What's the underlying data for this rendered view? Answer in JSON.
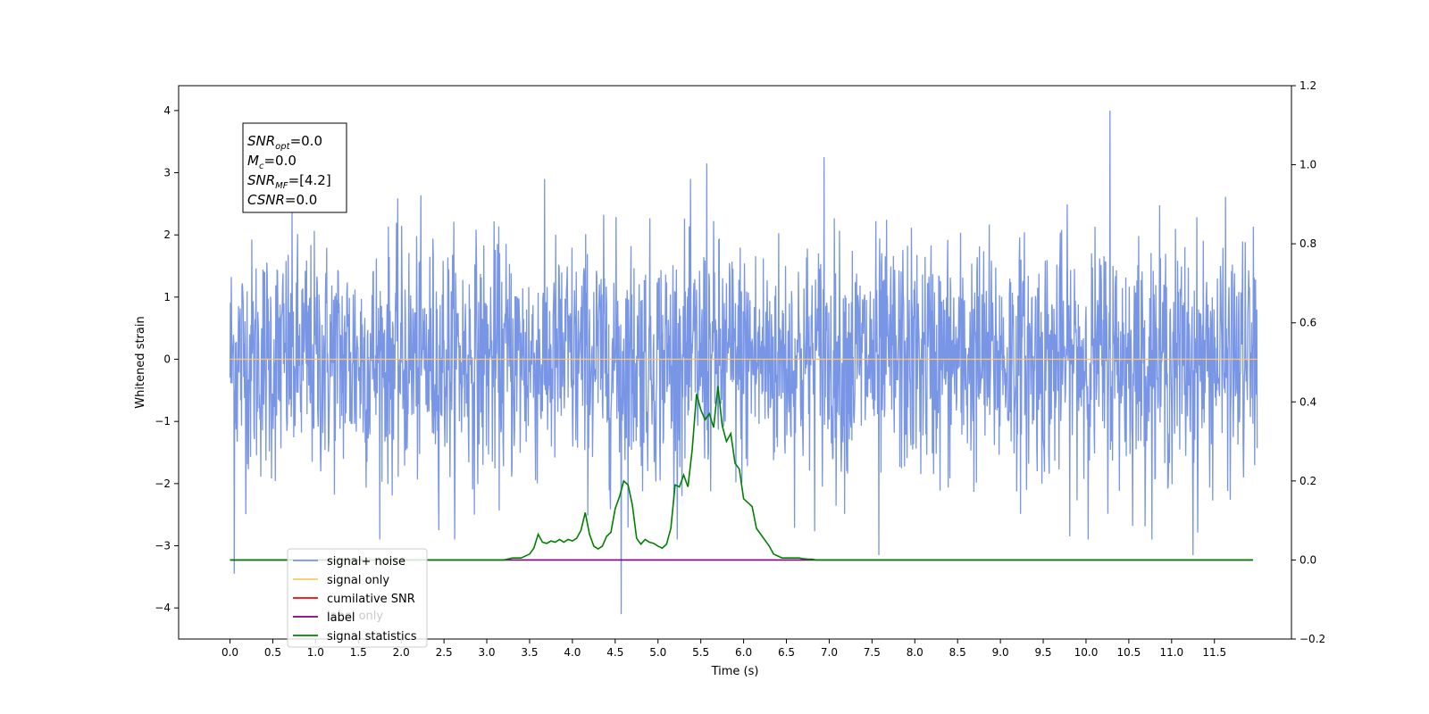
{
  "chart_data": {
    "type": "line",
    "xlabel": "Time (s)",
    "ylabel_left": "Whitened strain",
    "xlim": [
      -0.6,
      12.4
    ],
    "ylim_left": [
      -4.5,
      4.4
    ],
    "ylim_right": [
      -0.2,
      1.2
    ],
    "x_ticks": [
      "0.0",
      "0.5",
      "1.0",
      "1.5",
      "2.0",
      "2.5",
      "3.0",
      "3.5",
      "4.0",
      "4.5",
      "5.0",
      "5.5",
      "6.0",
      "6.5",
      "7.0",
      "7.5",
      "8.0",
      "8.5",
      "9.0",
      "9.5",
      "10.0",
      "10.5",
      "11.0",
      "11.5"
    ],
    "y_left_ticks": [
      "4",
      "3",
      "2",
      "1",
      "0",
      "−1",
      "−2",
      "−3",
      "−4"
    ],
    "y_right_ticks": [
      "1.2",
      "1.0",
      "0.8",
      "0.6",
      "0.4",
      "0.2",
      "0.0",
      "−0.2"
    ],
    "colors": {
      "signal_noise": "#7895e6",
      "signal_only": "#ffc864",
      "cumulative_snr": "#ff0000",
      "label": "#800080",
      "signal_statistics": "#008000"
    },
    "legend": {
      "placement": "lower-left",
      "entries": [
        "signal+ noise",
        "signal only",
        "cumilative SNR",
        "label",
        "signal statistics"
      ],
      "ghost_text": [
        "label only"
      ]
    },
    "annotation": {
      "lines": [
        {
          "base": "SNR",
          "sub": "opt",
          "rest": "=0.0"
        },
        {
          "base": "M",
          "sub": "c",
          "rest": "=0.0"
        },
        {
          "base": "SNR",
          "sub": "MF",
          "rest": "=[4.2]"
        },
        {
          "base": "CSNR",
          "sub": "",
          "rest": "=0.0"
        }
      ]
    },
    "series": [
      {
        "name": "signal+ noise",
        "axis": "left",
        "summary": "whitened noise, roughly within -2 to +2 with spikes to +4.0 and -4.1",
        "x_range": [
          0.0,
          12.0
        ],
        "peaks": [
          {
            "x": 0.05,
            "y": -3.45
          },
          {
            "x": 10.28,
            "y": 4.0
          },
          {
            "x": 4.57,
            "y": -4.1
          },
          {
            "x": 6.94,
            "y": 3.25
          },
          {
            "x": 5.57,
            "y": 3.15
          },
          {
            "x": 11.25,
            "y": -3.15
          },
          {
            "x": 7.58,
            "y": -3.15
          }
        ]
      },
      {
        "name": "signal only",
        "axis": "left",
        "x": [
          0.0,
          12.0
        ],
        "y": [
          0.0,
          0.0
        ]
      },
      {
        "name": "label",
        "axis": "right",
        "x": [
          0.0,
          11.95
        ],
        "y": [
          0.0,
          0.0
        ]
      },
      {
        "name": "signal statistics",
        "axis": "right",
        "x": [
          0.0,
          2.9,
          3.0,
          3.2,
          3.3,
          3.4,
          3.5,
          3.55,
          3.6,
          3.65,
          3.7,
          3.75,
          3.8,
          3.85,
          3.9,
          3.95,
          4.0,
          4.05,
          4.1,
          4.15,
          4.2,
          4.25,
          4.3,
          4.35,
          4.4,
          4.45,
          4.5,
          4.55,
          4.6,
          4.65,
          4.7,
          4.75,
          4.8,
          4.85,
          4.9,
          4.95,
          5.0,
          5.05,
          5.1,
          5.15,
          5.2,
          5.25,
          5.3,
          5.35,
          5.4,
          5.45,
          5.5,
          5.55,
          5.6,
          5.65,
          5.7,
          5.75,
          5.8,
          5.85,
          5.9,
          5.95,
          6.0,
          6.05,
          6.1,
          6.15,
          6.2,
          6.25,
          6.3,
          6.35,
          6.4,
          6.45,
          6.5,
          6.55,
          6.6,
          6.65,
          6.7,
          6.75,
          6.8,
          6.85,
          6.9,
          6.95,
          7.0,
          7.1,
          7.2,
          7.3,
          7.4,
          7.5,
          7.6,
          7.7,
          7.8,
          8.0,
          9.0,
          10.0,
          11.0,
          11.95
        ],
        "y": [
          0.0,
          0.0,
          0.0,
          0.0,
          0.005,
          0.005,
          0.015,
          0.03,
          0.065,
          0.045,
          0.042,
          0.048,
          0.045,
          0.052,
          0.045,
          0.052,
          0.048,
          0.055,
          0.075,
          0.12,
          0.065,
          0.035,
          0.028,
          0.035,
          0.06,
          0.07,
          0.13,
          0.16,
          0.2,
          0.19,
          0.14,
          0.055,
          0.04,
          0.052,
          0.045,
          0.042,
          0.035,
          0.03,
          0.04,
          0.08,
          0.19,
          0.185,
          0.215,
          0.185,
          0.28,
          0.42,
          0.38,
          0.355,
          0.37,
          0.335,
          0.44,
          0.34,
          0.3,
          0.32,
          0.245,
          0.23,
          0.155,
          0.145,
          0.135,
          0.08,
          0.065,
          0.05,
          0.035,
          0.015,
          0.01,
          0.005,
          0.005,
          0.005,
          0.005,
          0.005,
          0.003,
          0.002,
          0.002,
          0.0,
          0.0,
          0.0,
          0.0,
          0.0,
          0.0,
          0.0,
          0.0,
          0.0,
          0.0,
          0.0,
          0.0,
          0.0,
          0.0,
          0.0,
          0.0,
          0.0
        ]
      }
    ]
  }
}
